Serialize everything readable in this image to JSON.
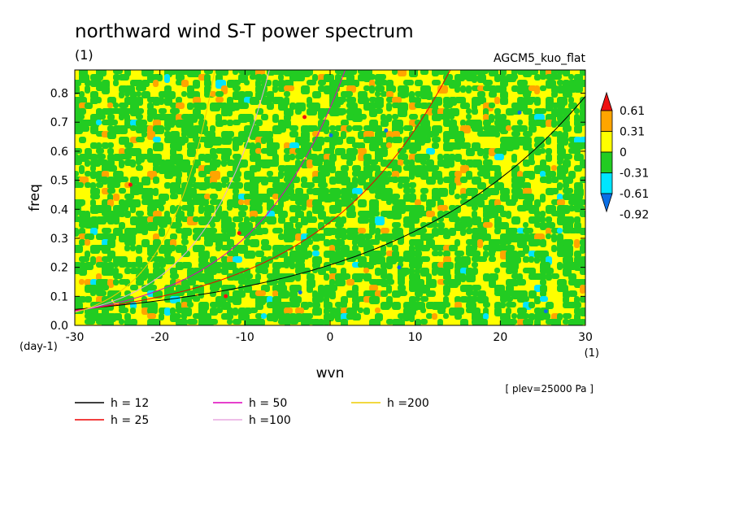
{
  "chart_data": {
    "type": "heatmap",
    "title": "northward wind S-T power spectrum",
    "title_units": "(1)",
    "experiment": "AGCM5_kuo_flat",
    "xlabel": "wvn",
    "ylabel": "freq",
    "x_units": "(1)",
    "y_units": "(day-1)",
    "annotation": "[ plev=25000 Pa ]",
    "xlim": [
      -30,
      30
    ],
    "ylim": [
      0,
      0.88
    ],
    "xticks": [
      -30,
      -20,
      -10,
      0,
      10,
      20,
      30
    ],
    "xtick_labels": [
      "-30",
      "-20",
      "-10",
      "0",
      "10",
      "20",
      "30"
    ],
    "yticks": [
      0,
      0.1,
      0.2,
      0.3,
      0.4,
      0.5,
      0.6,
      0.7,
      0.8
    ],
    "ytick_labels": [
      "0.0",
      "0.1",
      "0.2",
      "0.3",
      "0.4",
      "0.5",
      "0.6",
      "0.7",
      "0.8"
    ],
    "colorbar": {
      "labels": [
        "0.61",
        "0.31",
        "0",
        "-0.31",
        "-0.61",
        "-0.92"
      ],
      "levels": [
        -0.92,
        -0.61,
        -0.31,
        0,
        0.31,
        0.61
      ],
      "colors": [
        "#0a6fe6",
        "#00e5ff",
        "#22cc22",
        "#ffff00",
        "#ffa500",
        "#ee1111"
      ]
    },
    "dispersion_curves": [
      {
        "name": "h = 12",
        "h": 12,
        "color": "#000000"
      },
      {
        "name": "h = 25",
        "h": 25,
        "color": "#ee0000"
      },
      {
        "name": "h = 50",
        "h": 50,
        "color": "#dd00bb"
      },
      {
        "name": "h =100",
        "h": 100,
        "color": "#e8a8e0"
      },
      {
        "name": "h =200",
        "h": 200,
        "color": "#eecc00"
      }
    ]
  }
}
